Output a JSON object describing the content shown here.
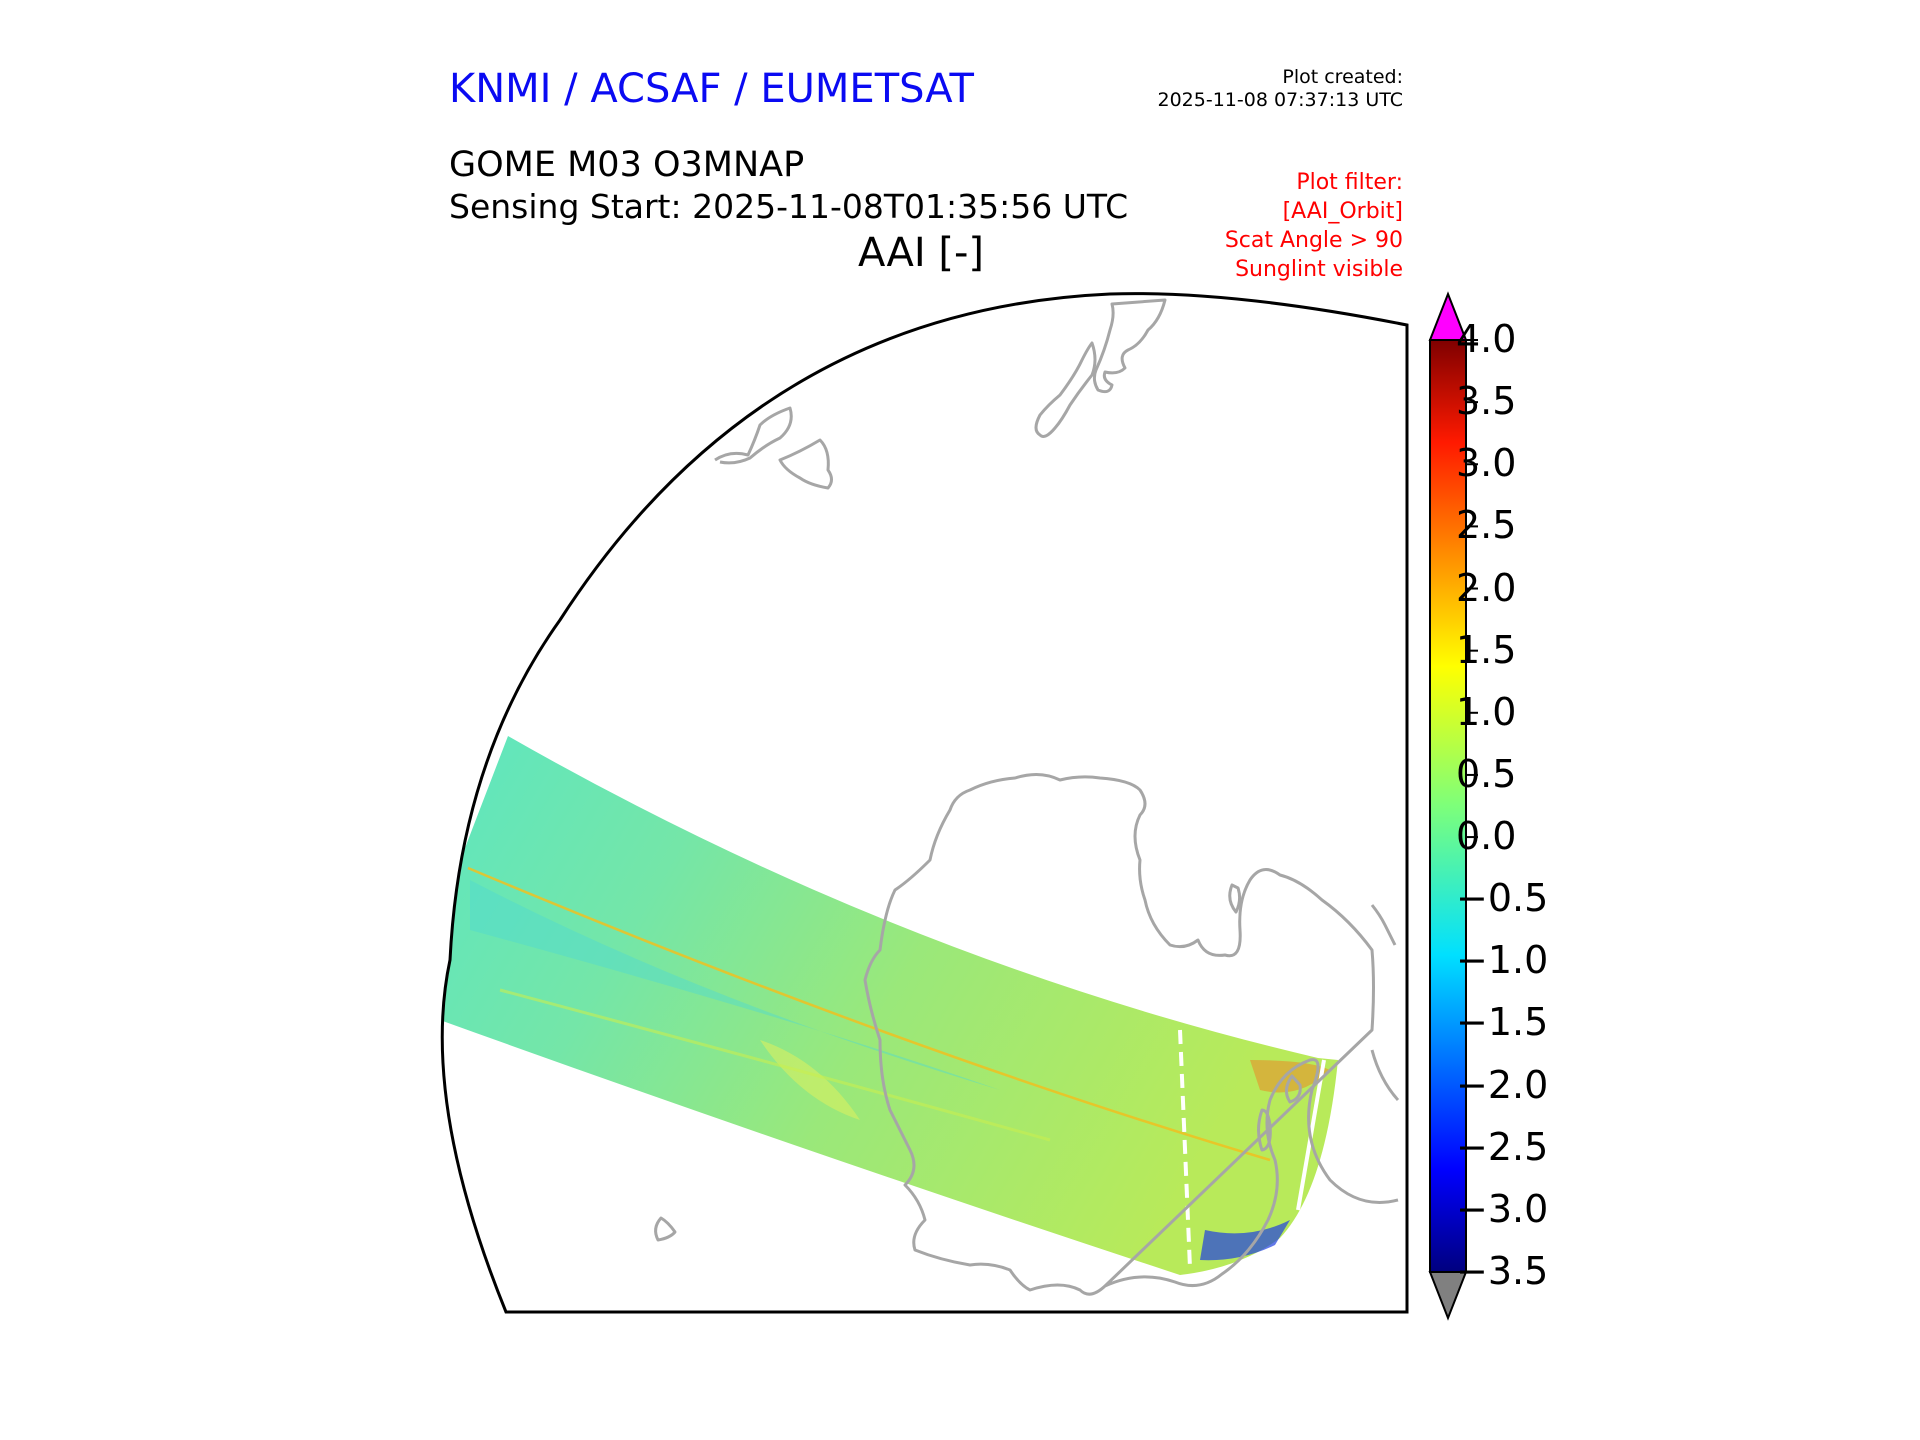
{
  "header": {
    "agency": "KNMI / ACSAF / EUMETSAT",
    "plot_created_label": "Plot created:",
    "plot_created_value": "2025-11-08 07:37:13 UTC",
    "product": "GOME M03 O3MNAP",
    "sensing_start": "Sensing Start: 2025-11-08T01:35:56 UTC",
    "parameter": "AAI [-]"
  },
  "plot_filter": [
    "Plot filter:",
    "[AAI_Orbit]",
    "Scat Angle > 90",
    "Sunglint visible"
  ],
  "colorbar": {
    "min": -3.5,
    "max": 4.0,
    "ticks": [
      "4.0",
      "3.5",
      "3.0",
      "2.5",
      "2.0",
      "1.5",
      "1.0",
      "0.5",
      "0.0",
      "−0.5",
      "−1.0",
      "−1.5",
      "−2.0",
      "−2.5",
      "−3.0",
      "−3.5"
    ],
    "over_color": "#ff00ff",
    "under_color": "#808080",
    "colormap": "jet"
  },
  "colors": {
    "agency": "#0a0af2",
    "filter_text": "#ff0000",
    "coastline": "#a6a6a6",
    "swath_dominant": "#7ee89a"
  }
}
